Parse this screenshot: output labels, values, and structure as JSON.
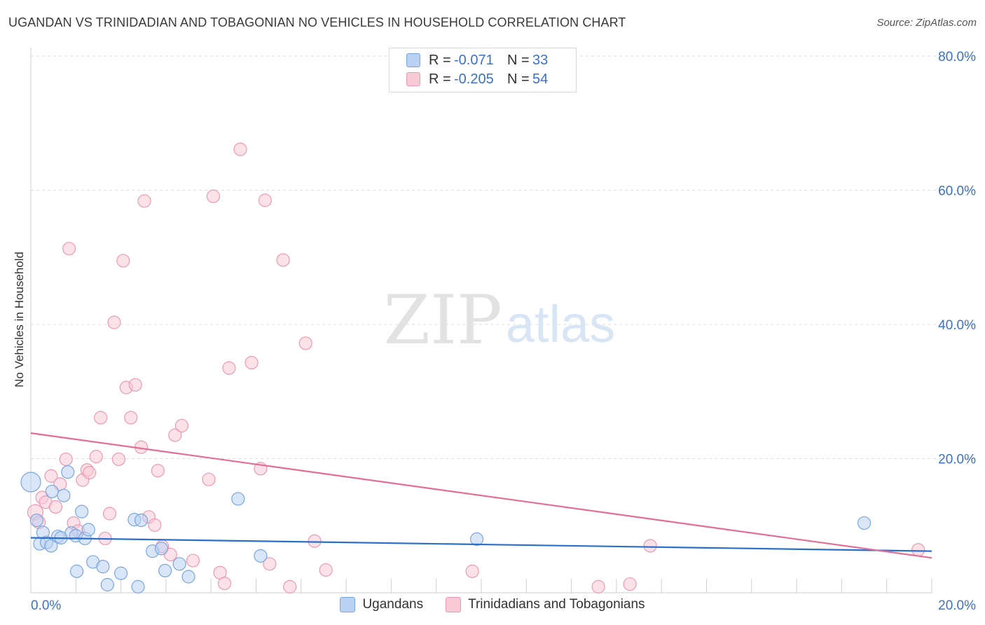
{
  "title": "UGANDAN VS TRINIDADIAN AND TOBAGONIAN NO VEHICLES IN HOUSEHOLD CORRELATION CHART",
  "source": "Source: ZipAtlas.com",
  "watermark": {
    "zip": "ZIP",
    "atlas": "atlas"
  },
  "colors": {
    "blue_fill": "#b9d2f3",
    "blue_stroke": "#7aa6e0",
    "blue_line": "#2a6fcc",
    "pink_fill": "#f8c9d6",
    "pink_stroke": "#ec9ab2",
    "pink_line": "#e46d96",
    "tick_label": "#3b72c6",
    "grid": "#dddddd"
  },
  "legend_top": [
    {
      "r_label": "R =",
      "r_value": "-0.071",
      "n_label": "N =",
      "n_value": "33"
    },
    {
      "r_label": "R =",
      "r_value": "-0.205",
      "n_label": "N =",
      "n_value": "54"
    }
  ],
  "chart_data": {
    "type": "scatter",
    "title": "UGANDAN VS TRINIDADIAN AND TOBAGONIAN NO VEHICLES IN HOUSEHOLD CORRELATION CHART",
    "xlabel": "",
    "ylabel": "No Vehicles in Household",
    "xlim": [
      0,
      20
    ],
    "ylim": [
      0,
      80
    ],
    "x_tick_labels": [
      {
        "value": 0,
        "label": "0.0%"
      },
      {
        "value": 20,
        "label": "20.0%"
      }
    ],
    "y_tick_labels": [
      {
        "value": 20,
        "label": "20.0%"
      },
      {
        "value": 40,
        "label": "40.0%"
      },
      {
        "value": 60,
        "label": "60.0%"
      },
      {
        "value": 80,
        "label": "80.0%"
      }
    ],
    "legend": [
      "Ugandans",
      "Trinidadians and Tobagonians"
    ],
    "series": [
      {
        "name": "Ugandans",
        "color": "blue",
        "trend": {
          "x": [
            0,
            20
          ],
          "y": [
            8.2,
            6.2
          ]
        },
        "points": [
          [
            0.0,
            16.5,
            14
          ],
          [
            0.13,
            10.8,
            9
          ],
          [
            0.2,
            7.3,
            9
          ],
          [
            0.27,
            9.0,
            9
          ],
          [
            0.35,
            7.5,
            9
          ],
          [
            0.45,
            7.0,
            9
          ],
          [
            0.47,
            15.1,
            9
          ],
          [
            0.6,
            8.4,
            9
          ],
          [
            0.67,
            8.2,
            9
          ],
          [
            0.73,
            14.5,
            9
          ],
          [
            0.82,
            18.0,
            9
          ],
          [
            0.9,
            8.9,
            9
          ],
          [
            1.0,
            8.5,
            9
          ],
          [
            1.02,
            3.2,
            9
          ],
          [
            1.13,
            12.1,
            9
          ],
          [
            1.2,
            8.1,
            9
          ],
          [
            1.28,
            9.4,
            9
          ],
          [
            1.38,
            4.6,
            9
          ],
          [
            1.6,
            3.9,
            9
          ],
          [
            1.7,
            1.2,
            9
          ],
          [
            2.0,
            2.9,
            9
          ],
          [
            2.3,
            10.9,
            9
          ],
          [
            2.38,
            0.9,
            9
          ],
          [
            2.45,
            10.8,
            9
          ],
          [
            2.7,
            6.2,
            9
          ],
          [
            2.9,
            6.6,
            9
          ],
          [
            2.98,
            3.3,
            9
          ],
          [
            3.3,
            4.3,
            9
          ],
          [
            3.5,
            2.4,
            9
          ],
          [
            4.6,
            14.0,
            9
          ],
          [
            5.1,
            5.5,
            9
          ],
          [
            9.9,
            8.0,
            9
          ],
          [
            18.5,
            10.4,
            9
          ]
        ]
      },
      {
        "name": "Trinidadians and Tobagonians",
        "color": "pink",
        "trend": {
          "x": [
            0,
            20
          ],
          "y": [
            23.8,
            5.2
          ]
        },
        "points": [
          [
            0.1,
            12.0,
            11
          ],
          [
            0.18,
            10.5,
            9
          ],
          [
            0.25,
            14.2,
            9
          ],
          [
            0.33,
            13.5,
            9
          ],
          [
            0.45,
            17.4,
            9
          ],
          [
            0.55,
            12.8,
            9
          ],
          [
            0.65,
            16.2,
            9
          ],
          [
            0.78,
            19.9,
            9
          ],
          [
            0.85,
            51.3,
            9
          ],
          [
            0.95,
            10.4,
            9
          ],
          [
            1.05,
            9.2,
            9
          ],
          [
            1.15,
            16.8,
            9
          ],
          [
            1.25,
            18.3,
            9
          ],
          [
            1.3,
            17.9,
            9
          ],
          [
            1.45,
            20.3,
            9
          ],
          [
            1.55,
            26.1,
            9
          ],
          [
            1.65,
            8.1,
            9
          ],
          [
            1.75,
            11.8,
            9
          ],
          [
            1.85,
            40.3,
            9
          ],
          [
            1.95,
            19.9,
            9
          ],
          [
            2.05,
            49.5,
            9
          ],
          [
            2.12,
            30.6,
            9
          ],
          [
            2.22,
            26.1,
            9
          ],
          [
            2.32,
            31.0,
            9
          ],
          [
            2.45,
            21.7,
            9
          ],
          [
            2.52,
            58.4,
            9
          ],
          [
            2.62,
            11.3,
            9
          ],
          [
            2.75,
            10.1,
            9
          ],
          [
            2.82,
            18.2,
            9
          ],
          [
            2.92,
            6.9,
            9
          ],
          [
            3.1,
            5.7,
            9
          ],
          [
            3.2,
            23.5,
            9
          ],
          [
            3.35,
            24.9,
            9
          ],
          [
            3.6,
            4.8,
            9
          ],
          [
            3.95,
            16.9,
            9
          ],
          [
            4.05,
            59.1,
            9
          ],
          [
            4.2,
            3.0,
            9
          ],
          [
            4.3,
            1.4,
            9
          ],
          [
            4.4,
            33.5,
            9
          ],
          [
            4.65,
            66.1,
            9
          ],
          [
            4.9,
            34.3,
            9
          ],
          [
            5.1,
            18.5,
            9
          ],
          [
            5.2,
            58.5,
            9
          ],
          [
            5.3,
            4.3,
            9
          ],
          [
            5.6,
            49.6,
            9
          ],
          [
            5.75,
            0.9,
            9
          ],
          [
            6.1,
            37.2,
            9
          ],
          [
            6.3,
            7.7,
            9
          ],
          [
            6.55,
            3.4,
            9
          ],
          [
            9.8,
            3.2,
            9
          ],
          [
            12.6,
            0.9,
            9
          ],
          [
            13.3,
            1.3,
            9
          ],
          [
            13.75,
            7.0,
            9
          ],
          [
            19.7,
            6.4,
            9
          ]
        ]
      }
    ]
  }
}
